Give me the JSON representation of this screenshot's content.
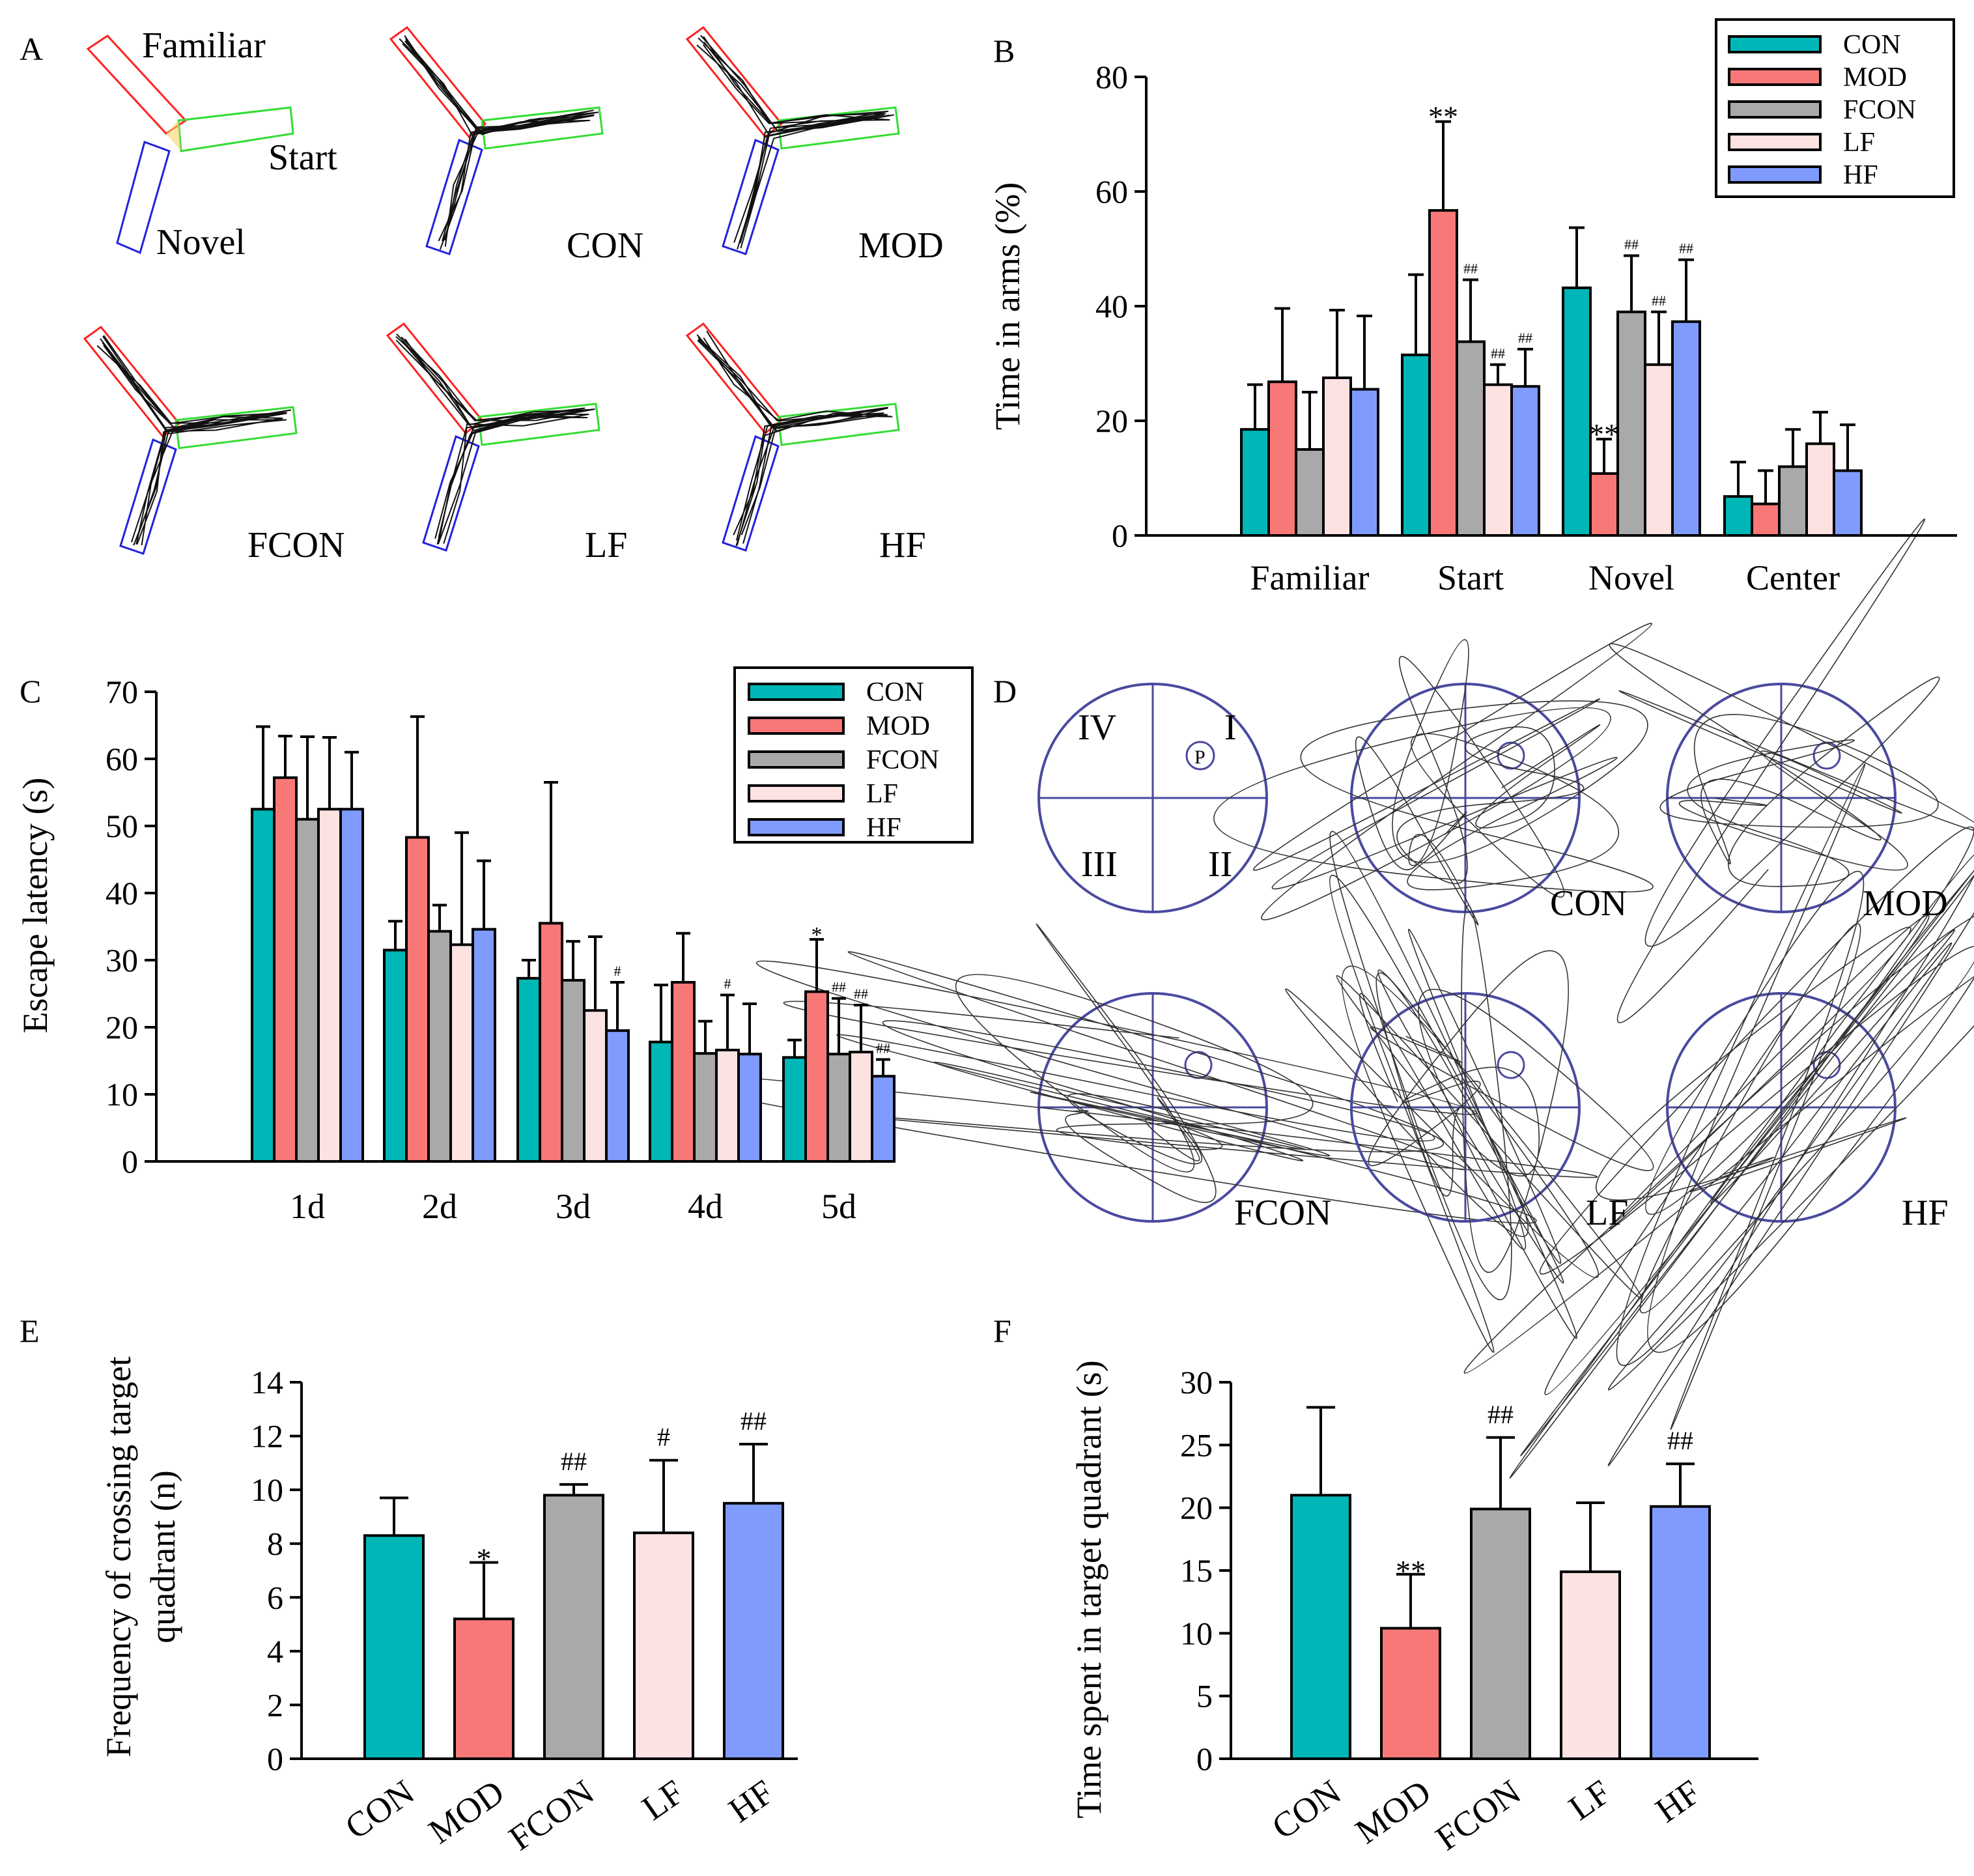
{
  "colors": {
    "CON": "#00b7b7",
    "MOD": "#f87878",
    "FCON": "#a9a9a9",
    "LF": "#fde2e2",
    "HF": "#7f9bfd",
    "familiar_arm": "#ff2222",
    "start_arm": "#33dd33",
    "novel_arm": "#2222dd",
    "pool": "#4a4aa0"
  },
  "groups": [
    "CON",
    "MOD",
    "FCON",
    "LF",
    "HF"
  ],
  "panels": {
    "A": {
      "label": "A",
      "arm_labels": {
        "familiar": "Familiar",
        "start": "Start",
        "novel": "Novel"
      },
      "group_labels": [
        "CON",
        "MOD",
        "FCON",
        "LF",
        "HF"
      ]
    },
    "B": {
      "label": "B"
    },
    "C": {
      "label": "C"
    },
    "D": {
      "label": "D",
      "quadrants": {
        "q1": "I",
        "q2": "II",
        "q3": "III",
        "q4": "IV",
        "platform": "P"
      },
      "group_labels": [
        "CON",
        "MOD",
        "FCON",
        "LF",
        "HF"
      ]
    },
    "E": {
      "label": "E"
    },
    "F": {
      "label": "F"
    }
  },
  "chart_data": [
    {
      "id": "B",
      "type": "bar",
      "ylabel": "Time in arms (%)",
      "xlabel": "",
      "ylim": [
        0,
        80
      ],
      "yticks": [
        0,
        20,
        40,
        60,
        80
      ],
      "categories": [
        "Familiar",
        "Start",
        "Novel",
        "Center"
      ],
      "legend": [
        "CON",
        "MOD",
        "FCON",
        "LF",
        "HF"
      ],
      "legend_position": "top-right",
      "series": [
        {
          "name": "CON",
          "values": [
            18.5,
            31.5,
            43.2,
            6.8
          ],
          "errors": [
            7.8,
            14.0,
            10.5,
            6.0
          ],
          "sig": [
            "",
            "",
            "",
            ""
          ]
        },
        {
          "name": "MOD",
          "values": [
            26.8,
            56.7,
            10.8,
            5.5
          ],
          "errors": [
            12.8,
            15.5,
            6.0,
            5.8
          ],
          "sig": [
            "",
            "**",
            "**",
            ""
          ]
        },
        {
          "name": "FCON",
          "values": [
            15.0,
            33.8,
            39.0,
            12.0
          ],
          "errors": [
            10.0,
            10.8,
            9.8,
            6.5
          ],
          "sig": [
            "",
            "##",
            "##",
            ""
          ]
        },
        {
          "name": "LF",
          "values": [
            27.5,
            26.3,
            29.8,
            16.0
          ],
          "errors": [
            11.8,
            3.5,
            9.2,
            5.5
          ],
          "sig": [
            "",
            "##",
            "##",
            ""
          ]
        },
        {
          "name": "HF",
          "values": [
            25.5,
            26.0,
            37.3,
            11.3
          ],
          "errors": [
            12.8,
            6.5,
            10.8,
            8.0
          ],
          "sig": [
            "",
            "##",
            "##",
            ""
          ]
        }
      ]
    },
    {
      "id": "C",
      "type": "bar",
      "ylabel": "Escape latency (s)",
      "xlabel": "",
      "ylim": [
        0,
        70
      ],
      "yticks": [
        0,
        10,
        20,
        30,
        40,
        50,
        60,
        70
      ],
      "categories": [
        "1d",
        "2d",
        "3d",
        "4d",
        "5d"
      ],
      "legend": [
        "CON",
        "MOD",
        "FCON",
        "LF",
        "HF"
      ],
      "legend_position": "top-right",
      "series": [
        {
          "name": "CON",
          "values": [
            52.5,
            31.5,
            27.3,
            17.8,
            15.5
          ],
          "errors": [
            12.3,
            4.3,
            2.7,
            8.5,
            2.6
          ],
          "sig": [
            "",
            "",
            "",
            "",
            ""
          ]
        },
        {
          "name": "MOD",
          "values": [
            57.2,
            48.3,
            35.5,
            26.7,
            25.3
          ],
          "errors": [
            6.2,
            18.0,
            21.0,
            7.3,
            7.8
          ],
          "sig": [
            "",
            "",
            "",
            "",
            "*"
          ]
        },
        {
          "name": "FCON",
          "values": [
            51.0,
            34.3,
            27.0,
            16.1,
            16.0
          ],
          "errors": [
            12.3,
            3.9,
            5.8,
            4.8,
            8.3
          ],
          "sig": [
            "",
            "",
            "",
            "",
            "##"
          ]
        },
        {
          "name": "LF",
          "values": [
            52.5,
            32.3,
            22.5,
            16.6,
            16.3
          ],
          "errors": [
            10.7,
            16.7,
            11.0,
            8.2,
            7.0
          ],
          "sig": [
            "",
            "",
            "",
            "#",
            "##"
          ]
        },
        {
          "name": "HF",
          "values": [
            52.5,
            34.6,
            19.5,
            16.0,
            12.7
          ],
          "errors": [
            8.5,
            10.2,
            7.2,
            7.5,
            2.5
          ],
          "sig": [
            "",
            "",
            "#",
            "",
            "##"
          ]
        }
      ]
    },
    {
      "id": "E",
      "type": "bar",
      "ylabel": "Frequency of crossing target quadrant (n)",
      "ylabel_lines": [
        "Frequency of crossing target",
        "quadrant (n)"
      ],
      "xlabel": "",
      "ylim": [
        0,
        14
      ],
      "yticks": [
        0,
        2,
        4,
        6,
        8,
        10,
        12,
        14
      ],
      "categories": [
        "CON",
        "MOD",
        "FCON",
        "LF",
        "HF"
      ],
      "values": [
        8.3,
        5.2,
        9.8,
        8.4,
        9.5
      ],
      "errors": [
        1.4,
        2.1,
        0.4,
        2.7,
        2.2
      ],
      "sig": [
        "",
        "*",
        "##",
        "#",
        "##"
      ]
    },
    {
      "id": "F",
      "type": "bar",
      "ylabel": "Time spent in target quadrant (s)",
      "xlabel": "",
      "ylim": [
        0,
        30
      ],
      "yticks": [
        0,
        5,
        10,
        15,
        20,
        25,
        30
      ],
      "categories": [
        "CON",
        "MOD",
        "FCON",
        "LF",
        "HF"
      ],
      "values": [
        21.0,
        10.4,
        19.9,
        14.9,
        20.1
      ],
      "errors": [
        7.0,
        4.3,
        5.7,
        5.5,
        3.4
      ],
      "sig": [
        "",
        "**",
        "##",
        "",
        "##"
      ]
    }
  ]
}
